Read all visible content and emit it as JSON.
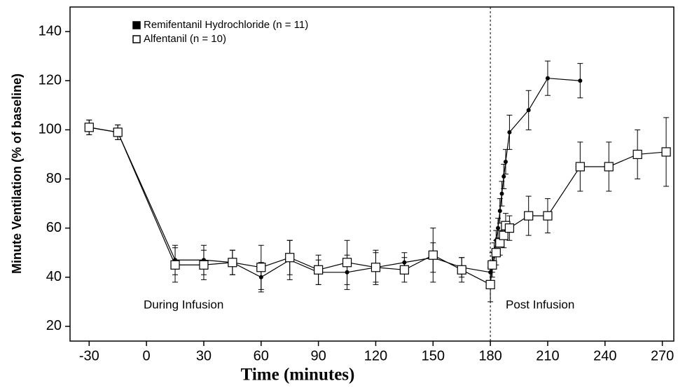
{
  "chart_data": {
    "type": "line",
    "y_label": "Minute Ventilation (% of baseline)",
    "x_label": "Time (minutes)",
    "annotations": [
      "During Infusion",
      "Post Infusion"
    ],
    "vline_x": 180,
    "xlim": [
      -40,
      276
    ],
    "xticks": [
      -30,
      0,
      30,
      60,
      90,
      120,
      150,
      180,
      210,
      240,
      270
    ],
    "ylim": [
      14,
      150
    ],
    "yticks": [
      20,
      40,
      60,
      80,
      100,
      120,
      140
    ],
    "legend": "upper left",
    "series": [
      {
        "name": "Remifentanil Hydrochloride (n = 11)",
        "color": "#000000",
        "marker": "circle",
        "x": [
          -30,
          -15,
          15,
          30,
          45,
          60,
          75,
          90,
          105,
          120,
          135,
          150,
          165,
          180,
          181,
          182,
          183,
          184,
          185,
          186,
          187,
          188,
          190,
          200,
          210,
          227
        ],
        "values": [
          101,
          99,
          47,
          47,
          46,
          40,
          47,
          42,
          42,
          44,
          46,
          48,
          44,
          42,
          46,
          50,
          55,
          60,
          67,
          74,
          81,
          87,
          99,
          108,
          121,
          120
        ],
        "errors": [
          3,
          3,
          6,
          6,
          5,
          6,
          8,
          5,
          7,
          6,
          4,
          6,
          4,
          4,
          4,
          4,
          4,
          4,
          5,
          5,
          5,
          5,
          7,
          8,
          7,
          7
        ]
      },
      {
        "name": "Alfentanil (n = 10)",
        "color": "#000000",
        "marker": "square",
        "x": [
          -30,
          -15,
          15,
          30,
          45,
          60,
          75,
          90,
          105,
          120,
          135,
          150,
          165,
          180,
          181,
          183,
          185,
          187,
          188,
          190,
          200,
          210,
          227,
          242,
          257,
          272
        ],
        "values": [
          101,
          99,
          45,
          45,
          46,
          44,
          48,
          43,
          46,
          44,
          43,
          49,
          43,
          37,
          45,
          50,
          54,
          57,
          61,
          60,
          65,
          65,
          85,
          85,
          90,
          91
        ],
        "errors": [
          3,
          3,
          7,
          6,
          5,
          9,
          7,
          6,
          9,
          7,
          5,
          11,
          5,
          7,
          5,
          5,
          5,
          5,
          5,
          5,
          8,
          7,
          10,
          10,
          10,
          14
        ]
      }
    ]
  }
}
